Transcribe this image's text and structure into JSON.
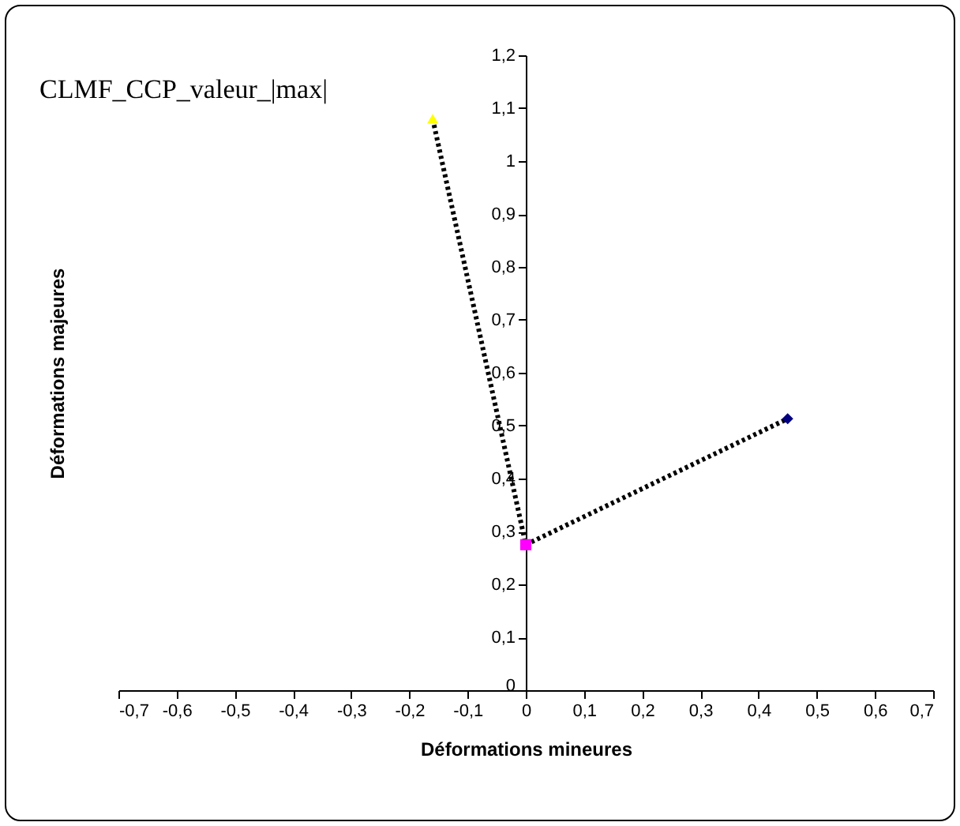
{
  "chart_data": {
    "type": "scatter",
    "xlabel": "Déformations mineures",
    "ylabel": "Déformations majeures",
    "annotations": [
      "CLMF_CCP_valeur_|max|"
    ],
    "xlim": [
      -0.7,
      0.7
    ],
    "xticks": [
      {
        "value": -0.7,
        "label": "-0,7"
      },
      {
        "value": -0.6,
        "label": "-0,6"
      },
      {
        "value": -0.5,
        "label": "-0,5"
      },
      {
        "value": -0.4,
        "label": "-0,4"
      },
      {
        "value": -0.3,
        "label": "-0,3"
      },
      {
        "value": -0.2,
        "label": "-0,2"
      },
      {
        "value": -0.1,
        "label": "-0,1"
      },
      0,
      {
        "value": 0.1,
        "label": "0,1"
      },
      {
        "value": 0.2,
        "label": "0,2"
      },
      {
        "value": 0.3,
        "label": "0,3"
      },
      {
        "value": 0.4,
        "label": "0,4"
      },
      {
        "value": 0.5,
        "label": "0,5"
      },
      {
        "value": 0.6,
        "label": "0,6"
      },
      {
        "value": 0.7,
        "label": "0,7"
      }
    ],
    "ylim": [
      0,
      1.2
    ],
    "yticks": [
      0,
      {
        "value": 0.1,
        "label": "0,1"
      },
      {
        "value": 0.2,
        "label": "0,2"
      },
      {
        "value": 0.3,
        "label": "0,3"
      },
      {
        "value": 0.4,
        "label": "0,4"
      },
      {
        "value": 0.5,
        "label": "0,5"
      },
      {
        "value": 0.6,
        "label": "0,6"
      },
      {
        "value": 0.7,
        "label": "0,7"
      },
      {
        "value": 0.8,
        "label": "0,8"
      },
      {
        "value": 0.9,
        "label": "0,9"
      },
      1,
      {
        "value": 1.1,
        "label": "1,1"
      },
      {
        "value": 1.2,
        "label": "1,2"
      }
    ],
    "grid": false,
    "series": [
      {
        "type": "line",
        "color": "#000000",
        "line_style": "dotted",
        "marker": "none",
        "x": [
          -0.16,
          0,
          0.45
        ],
        "values": [
          1.08,
          0.275,
          0.513
        ]
      },
      {
        "color": "#ffff00",
        "marker": "triangle",
        "x": [
          -0.16
        ],
        "values": [
          1.08
        ]
      },
      {
        "color": "#ff00ff",
        "marker": "square",
        "x": [
          0
        ],
        "values": [
          0.275
        ]
      },
      {
        "color": "#000080",
        "marker": "diamond",
        "x": [
          0.45
        ],
        "values": [
          0.513
        ]
      }
    ]
  }
}
